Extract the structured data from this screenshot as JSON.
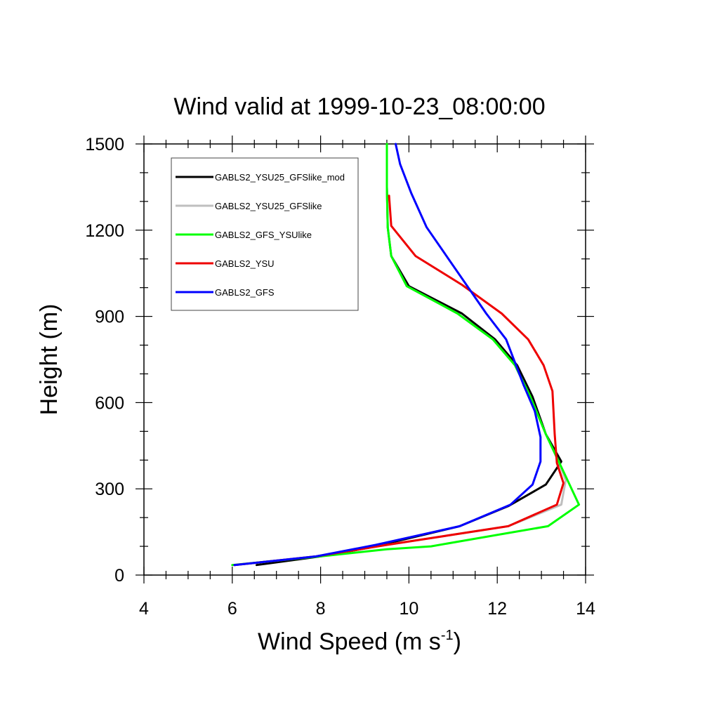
{
  "chart_data": {
    "type": "line",
    "title": "Wind valid at 1999-10-23_08:00:00",
    "xlabel": "Wind Speed (m s",
    "xlabel_superscript": "-1",
    "xlabel_close": ")",
    "ylabel": "Height (m)",
    "xlim": [
      4,
      14
    ],
    "ylim": [
      0,
      1500
    ],
    "x_ticks": [
      4,
      6,
      8,
      10,
      12,
      14
    ],
    "y_ticks": [
      0,
      300,
      600,
      900,
      1200,
      1500
    ],
    "x_tick_labels": [
      "4",
      "6",
      "8",
      "10",
      "12",
      "14"
    ],
    "y_tick_labels": [
      "0",
      "300",
      "600",
      "900",
      "1200",
      "1500"
    ],
    "x_minor_step": 0.5,
    "y_minor_step": 100,
    "grid": false,
    "legend_position": "top-left",
    "series": [
      {
        "name": "GABLS2_YSU25_GFSlike_mod",
        "color": "#000000",
        "points": [
          [
            6.55,
            35
          ],
          [
            8.0,
            65
          ],
          [
            9.1,
            95
          ],
          [
            11.15,
            170
          ],
          [
            12.25,
            240
          ],
          [
            13.1,
            315
          ],
          [
            13.45,
            395
          ],
          [
            13.1,
            490
          ],
          [
            12.8,
            620
          ],
          [
            12.45,
            730
          ],
          [
            11.95,
            820
          ],
          [
            11.2,
            910
          ],
          [
            10.0,
            1005
          ],
          [
            9.6,
            1110
          ],
          [
            9.52,
            1210
          ],
          [
            9.5,
            1350
          ],
          [
            9.5,
            1500
          ]
        ]
      },
      {
        "name": "GABLS2_YSU25_GFSlike",
        "color": "#bfbfbf",
        "points": [
          [
            6.05,
            35
          ],
          [
            7.9,
            65
          ],
          [
            9.5,
            105
          ],
          [
            12.25,
            170
          ],
          [
            13.45,
            245
          ],
          [
            13.55,
            330
          ],
          [
            13.4,
            390
          ],
          [
            13.1,
            490
          ],
          [
            12.75,
            620
          ],
          [
            12.4,
            730
          ],
          [
            11.9,
            820
          ],
          [
            11.1,
            910
          ],
          [
            9.95,
            1005
          ],
          [
            9.6,
            1110
          ],
          [
            9.52,
            1210
          ],
          [
            9.5,
            1350
          ],
          [
            9.5,
            1500
          ]
        ]
      },
      {
        "name": "GABLS2_GFS_YSUlike",
        "color": "#00ff00",
        "points": [
          [
            6.0,
            35
          ],
          [
            8.0,
            65
          ],
          [
            9.5,
            90
          ],
          [
            10.5,
            100
          ],
          [
            12.2,
            145
          ],
          [
            13.15,
            170
          ],
          [
            13.85,
            245
          ],
          [
            13.5,
            360
          ],
          [
            13.1,
            490
          ],
          [
            12.75,
            620
          ],
          [
            12.4,
            730
          ],
          [
            11.9,
            820
          ],
          [
            11.1,
            910
          ],
          [
            9.95,
            1005
          ],
          [
            9.6,
            1110
          ],
          [
            9.52,
            1210
          ],
          [
            9.5,
            1350
          ],
          [
            9.5,
            1500
          ]
        ]
      },
      {
        "name": "GABLS2_YSU",
        "color": "#ee0000",
        "points": [
          [
            6.05,
            35
          ],
          [
            7.9,
            65
          ],
          [
            9.5,
            105
          ],
          [
            12.25,
            170
          ],
          [
            13.35,
            245
          ],
          [
            13.5,
            320
          ],
          [
            13.35,
            390
          ],
          [
            13.3,
            490
          ],
          [
            13.25,
            640
          ],
          [
            13.05,
            730
          ],
          [
            12.7,
            820
          ],
          [
            12.1,
            910
          ],
          [
            11.2,
            1010
          ],
          [
            10.15,
            1110
          ],
          [
            9.6,
            1215
          ],
          [
            9.55,
            1320
          ]
        ]
      },
      {
        "name": "GABLS2_GFS",
        "color": "#0000ff",
        "points": [
          [
            6.05,
            35
          ],
          [
            7.9,
            65
          ],
          [
            9.25,
            105
          ],
          [
            11.15,
            170
          ],
          [
            12.3,
            245
          ],
          [
            12.8,
            315
          ],
          [
            12.98,
            395
          ],
          [
            12.98,
            480
          ],
          [
            12.85,
            570
          ],
          [
            12.6,
            660
          ],
          [
            12.2,
            820
          ],
          [
            11.75,
            910
          ],
          [
            10.4,
            1210
          ],
          [
            10.05,
            1330
          ],
          [
            9.8,
            1430
          ],
          [
            9.7,
            1500
          ]
        ]
      }
    ]
  }
}
